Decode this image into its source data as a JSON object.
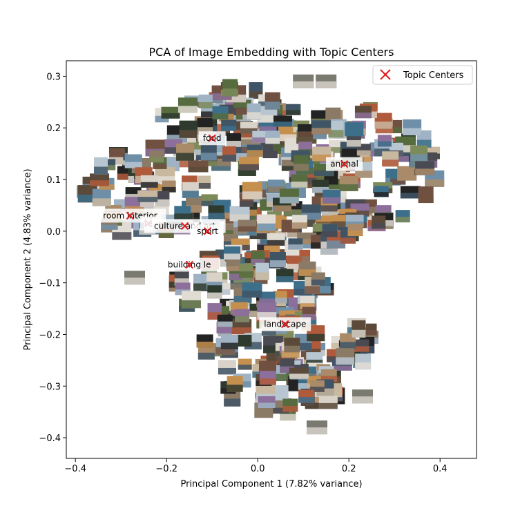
{
  "chart_data": {
    "type": "scatter",
    "title": "PCA of Image Embedding with Topic Centers",
    "xlabel": "Principal Component 1 (7.82% variance)",
    "ylabel": "Principal Component 2 (4.83% variance)",
    "xlim": [
      -0.42,
      0.48
    ],
    "ylim": [
      -0.44,
      0.33
    ],
    "x_ticks": [
      -0.4,
      -0.2,
      0.0,
      0.2,
      0.4
    ],
    "x_tick_labels": [
      "−0.4",
      "−0.2",
      "0.0",
      "0.2",
      "0.4"
    ],
    "y_ticks": [
      0.3,
      0.2,
      0.1,
      0.0,
      -0.1,
      -0.2,
      -0.3,
      -0.4
    ],
    "y_tick_labels": [
      "0.3",
      "0.2",
      "0.1",
      "0.0",
      "−0.1",
      "−0.2",
      "−0.3",
      "−0.4"
    ],
    "grid": false,
    "legend": {
      "position": "upper right",
      "label": "Topic Centers",
      "marker": "x",
      "color": "#e41a1c"
    },
    "points_description_marker": "image thumbnails",
    "topic_centers": [
      {
        "label": "food",
        "x": -0.1,
        "y": 0.18
      },
      {
        "label": "animal",
        "x": 0.19,
        "y": 0.13
      },
      {
        "label": "room interior",
        "x": -0.28,
        "y": 0.03
      },
      {
        "label": "te",
        "x": -0.24,
        "y": 0.015
      },
      {
        "label": "culture and art",
        "x": -0.16,
        "y": 0.01
      },
      {
        "label": "sport",
        "x": -0.11,
        "y": 0.0
      },
      {
        "label": "building le",
        "x": -0.15,
        "y": -0.065
      },
      {
        "label": "landscape",
        "x": 0.06,
        "y": -0.18
      }
    ]
  }
}
